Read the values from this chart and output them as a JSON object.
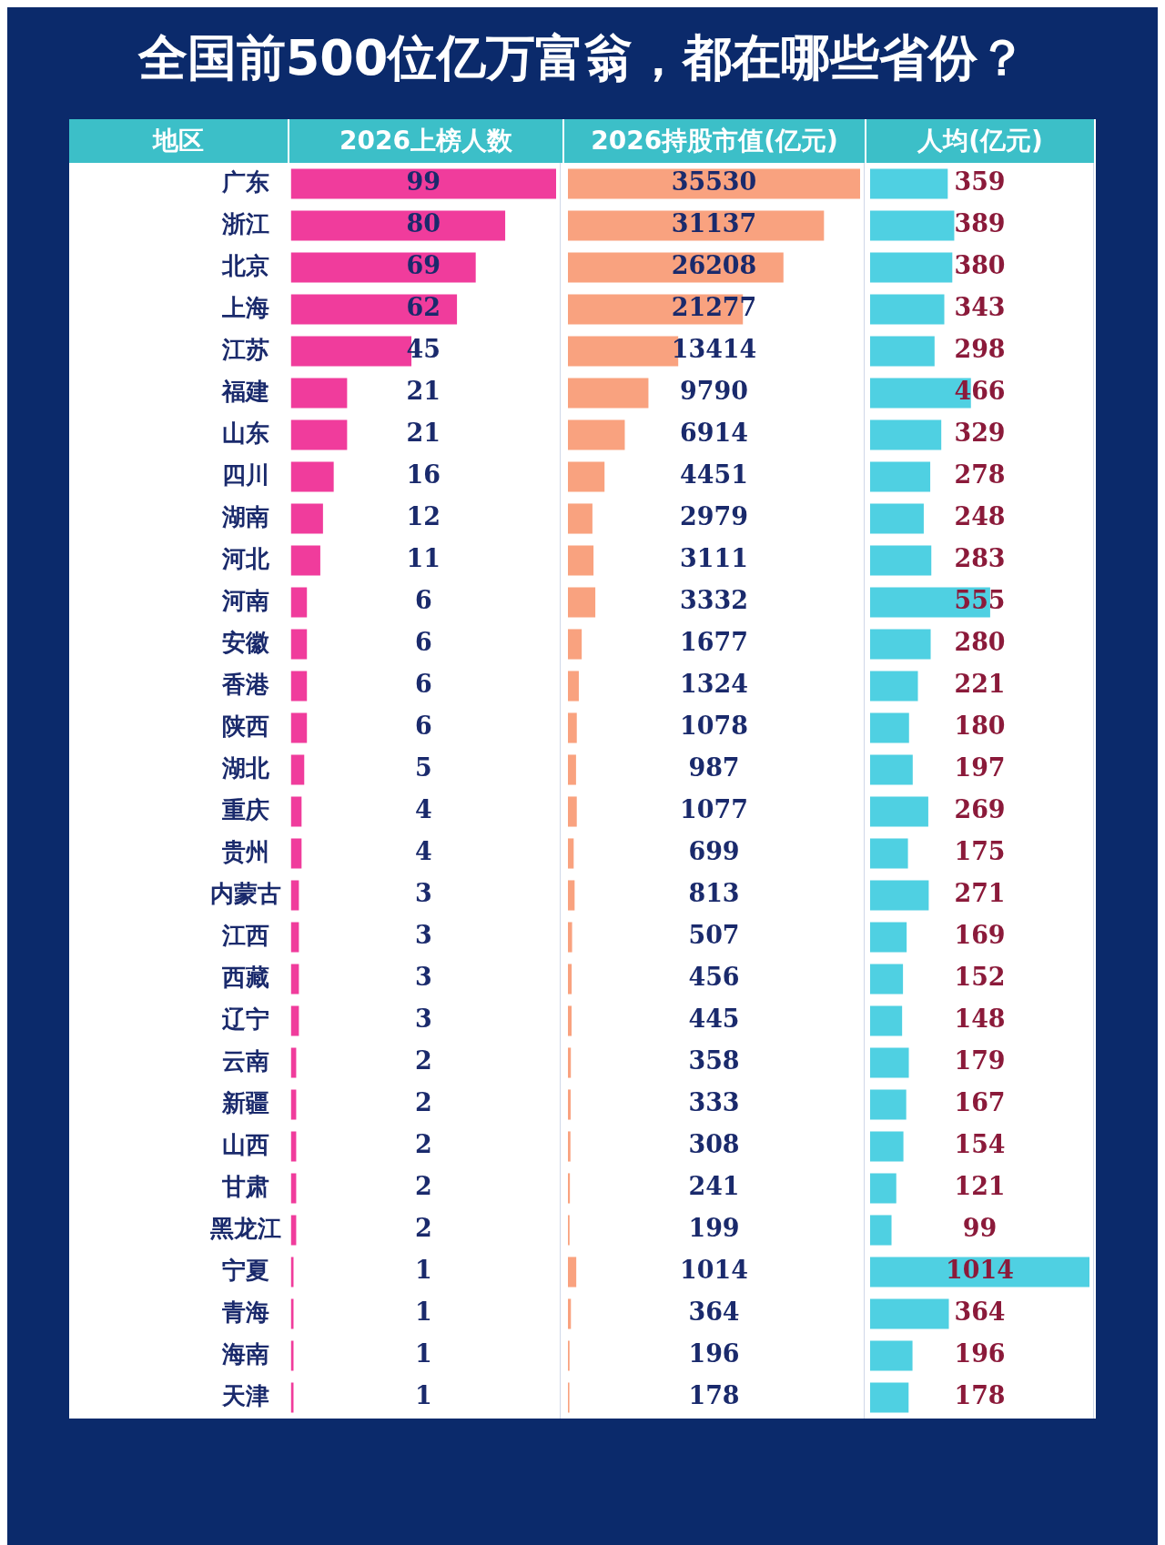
{
  "chart_data": [
    {
      "type": "bar",
      "title": "全国前500位亿万富翁，都在哪些省份？",
      "ylabel": "地区",
      "subtitle": "2026上榜人数",
      "orientation": "horizontal",
      "data_labels": true,
      "tick_labels": "y",
      "color": "#f03c9c",
      "categories": [
        "广东",
        "浙江",
        "北京",
        "上海",
        "江苏",
        "福建",
        "山东",
        "四川",
        "湖南",
        "河北",
        "河南",
        "安徽",
        "香港",
        "陕西",
        "湖北",
        "重庆",
        "贵州",
        "内蒙古",
        "江西",
        "西藏",
        "辽宁",
        "云南",
        "新疆",
        "山西",
        "甘肃",
        "黑龙江",
        "宁夏",
        "青海",
        "海南",
        "天津"
      ],
      "values": [
        99,
        80,
        69,
        62,
        45,
        21,
        21,
        16,
        12,
        11,
        6,
        6,
        6,
        6,
        5,
        4,
        4,
        3,
        3,
        3,
        3,
        2,
        2,
        2,
        2,
        2,
        1,
        1,
        1,
        1
      ]
    },
    {
      "type": "bar",
      "subtitle": "2026持股市值(亿元)",
      "orientation": "horizontal",
      "data_labels": true,
      "tick_labels": false,
      "color": "#f9a27f",
      "categories": [
        null,
        null,
        null,
        null,
        null,
        null,
        null,
        null,
        null,
        null,
        null,
        null,
        null,
        null,
        null,
        null,
        null,
        null,
        null,
        null,
        null,
        null,
        null,
        null,
        null,
        null,
        null,
        null,
        null,
        null
      ],
      "values": [
        35530,
        31137,
        26208,
        21277,
        13414,
        9790,
        6914,
        4451,
        2979,
        3111,
        3332,
        1677,
        1324,
        1078,
        987,
        1077,
        699,
        813,
        507,
        456,
        445,
        358,
        333,
        308,
        241,
        199,
        1014,
        364,
        196,
        178
      ]
    },
    {
      "type": "bar",
      "subtitle": "人均(亿元)",
      "orientation": "horizontal",
      "data_labels": true,
      "tick_labels": false,
      "color": "#4fd0e2",
      "categories": [
        null,
        null,
        null,
        null,
        null,
        null,
        null,
        null,
        null,
        null,
        null,
        null,
        null,
        null,
        null,
        null,
        null,
        null,
        null,
        null,
        null,
        null,
        null,
        null,
        null,
        null,
        null,
        null,
        null,
        null
      ],
      "values": [
        359,
        389,
        380,
        343,
        298,
        466,
        329,
        278,
        248,
        283,
        555,
        280,
        221,
        180,
        197,
        269,
        175,
        271,
        169,
        152,
        148,
        179,
        167,
        154,
        121,
        99,
        1014,
        364,
        196,
        178
      ]
    }
  ]
}
